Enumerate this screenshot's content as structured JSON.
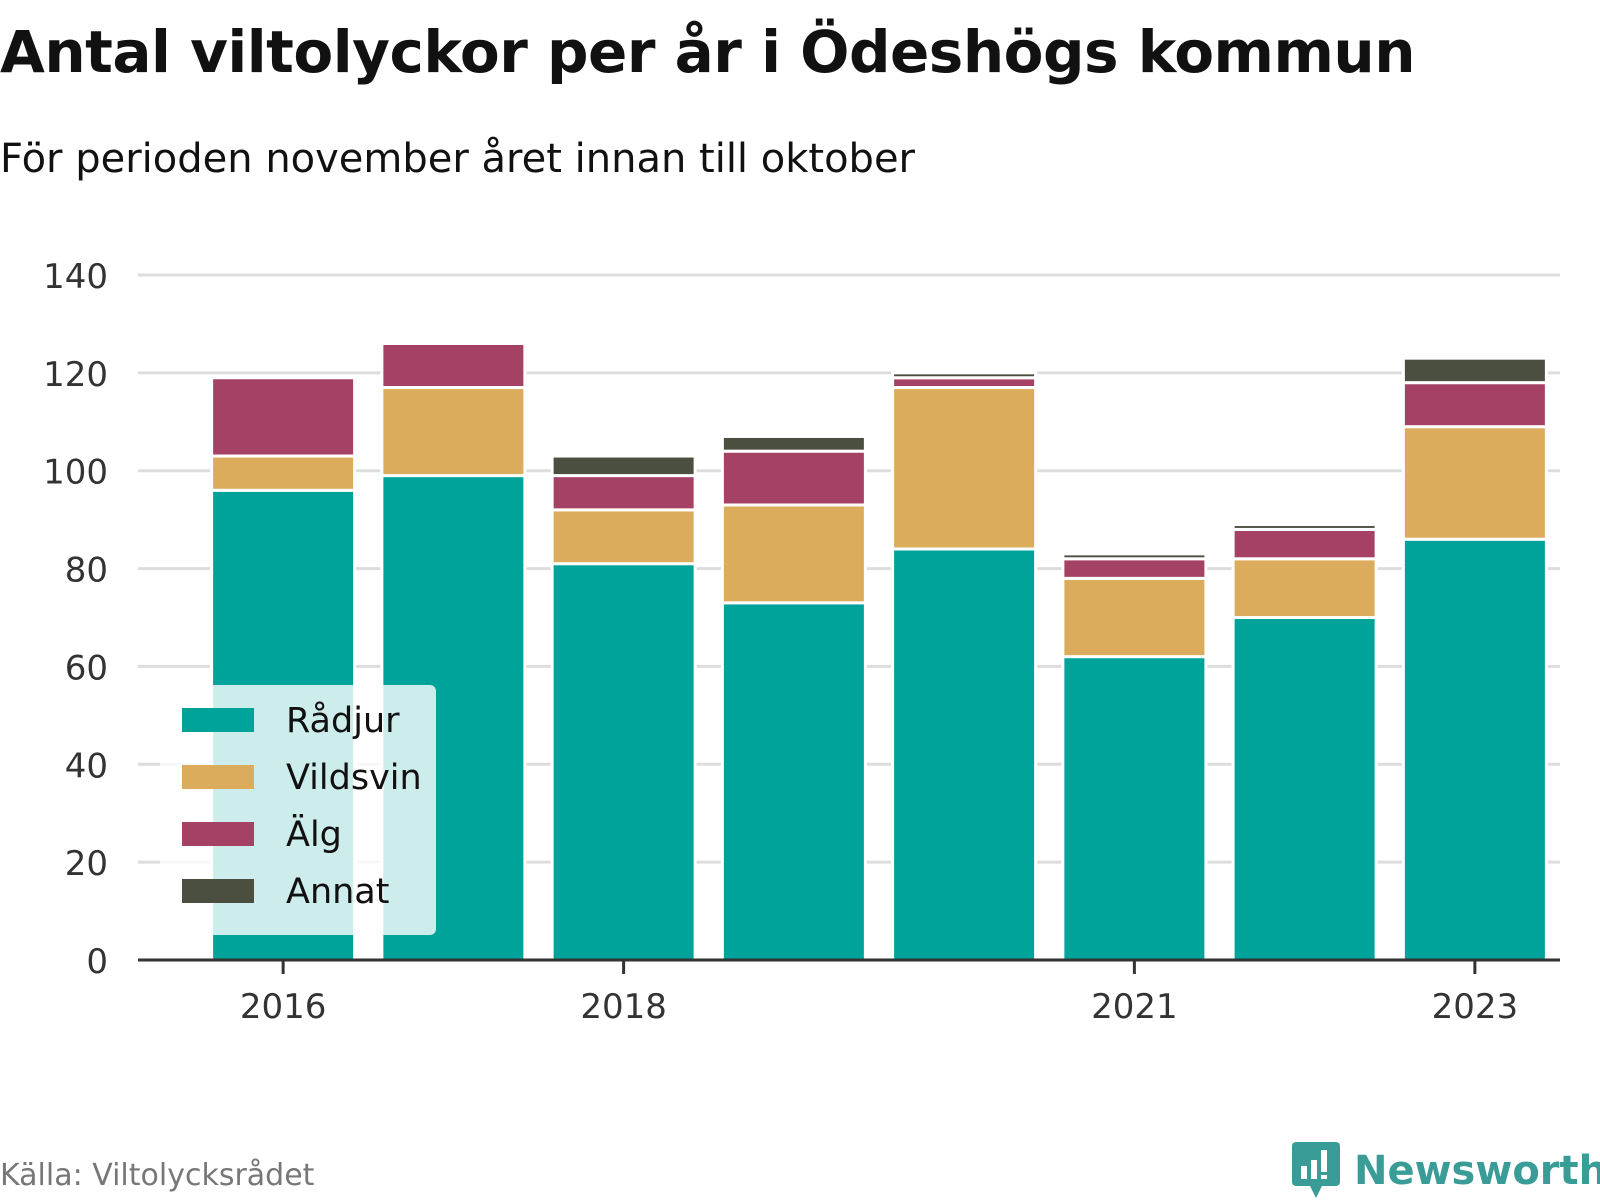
{
  "header": {
    "title": "Antal viltolyckor per år i Ödeshögs kommun",
    "subtitle": "För perioden november året innan till oktober"
  },
  "footer": {
    "source": "Källa: Viltolycksrådet",
    "brand": "Newsworthy",
    "brand_color": "#3a9c96"
  },
  "chart_data": {
    "type": "bar",
    "stacked": true,
    "title": "Antal viltolyckor per år i Ödeshögs kommun",
    "subtitle": "För perioden november året innan till oktober",
    "categories": [
      "2016",
      "2017",
      "2018",
      "2019",
      "2020",
      "2021",
      "2022",
      "2023"
    ],
    "x_tick_labels": [
      "2016",
      "2018",
      "2021",
      "2023"
    ],
    "ylim": [
      0,
      140
    ],
    "y_ticks": [
      0,
      20,
      40,
      60,
      80,
      100,
      120,
      140
    ],
    "grid": true,
    "legend_position": "bottom-left",
    "series": [
      {
        "name": "Rådjur",
        "color": "#00a39a",
        "values": [
          96,
          99,
          81,
          73,
          84,
          62,
          70,
          86
        ]
      },
      {
        "name": "Vildsvin",
        "color": "#dbac5b",
        "values": [
          7,
          18,
          11,
          20,
          33,
          16,
          12,
          23
        ]
      },
      {
        "name": "Älg",
        "color": "#a64166",
        "values": [
          16,
          9,
          7,
          11,
          2,
          4,
          6,
          9
        ]
      },
      {
        "name": "Annat",
        "color": "#4b4f40",
        "values": [
          0,
          0,
          4,
          3,
          1,
          1,
          1,
          5
        ]
      }
    ]
  }
}
